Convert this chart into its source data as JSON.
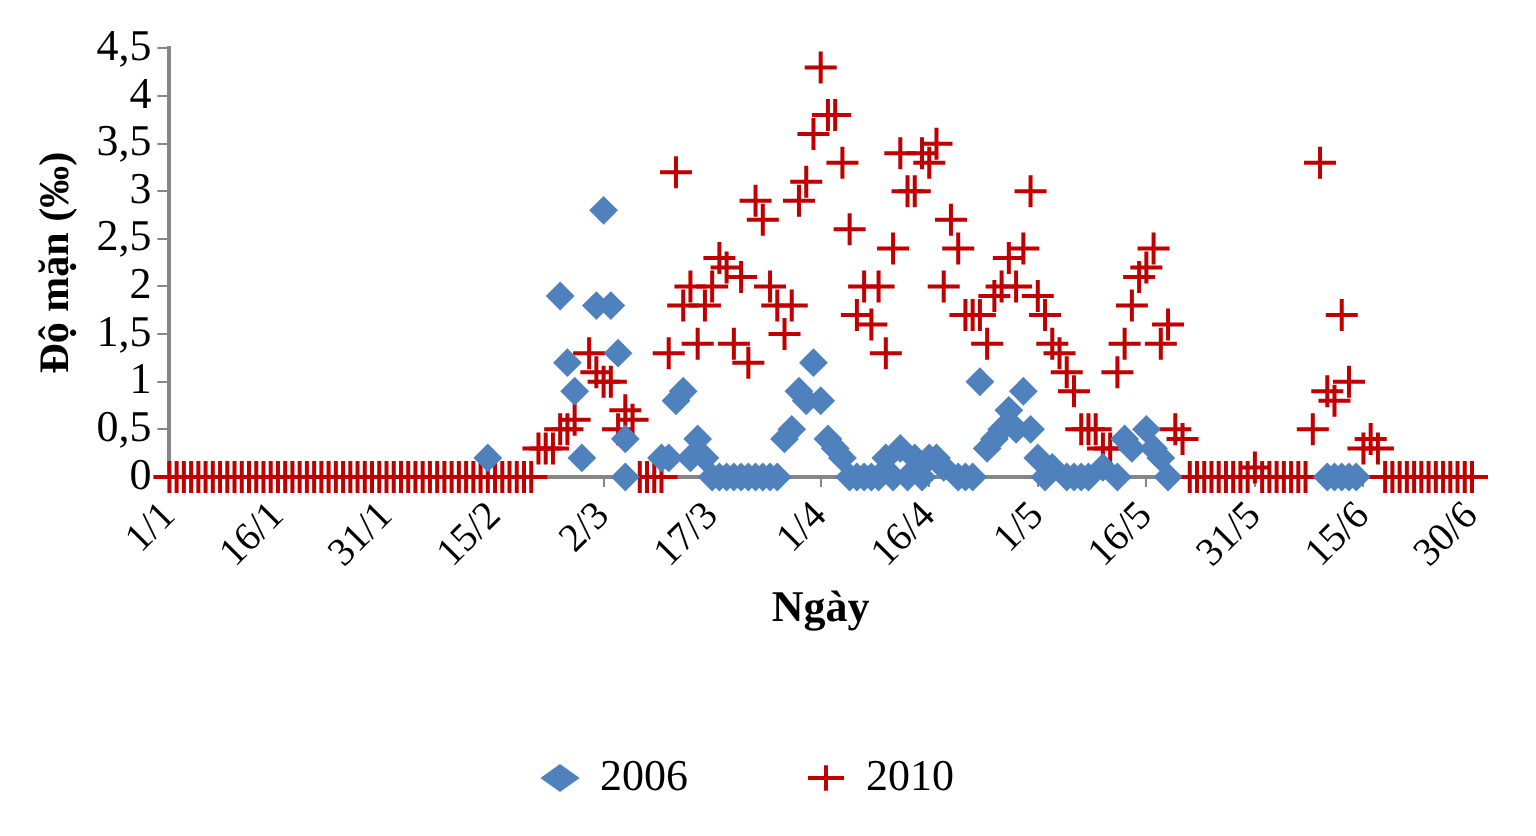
{
  "chart_data": {
    "type": "scatter",
    "xlabel": "Ngày",
    "ylabel": "Độ mặn (‰)",
    "legend": "bottom",
    "grid": false,
    "xlim": [
      "--01-01",
      "--06-30"
    ],
    "xticks": [
      {
        "value": "--01-01",
        "label": "1/1"
      },
      {
        "value": "--01-16",
        "label": "16/1"
      },
      {
        "value": "--01-31",
        "label": "31/1"
      },
      {
        "value": "--02-15",
        "label": "15/2"
      },
      {
        "value": "--03-02",
        "label": "2/3"
      },
      {
        "value": "--03-17",
        "label": "17/3"
      },
      {
        "value": "--04-01",
        "label": "1/4"
      },
      {
        "value": "--04-16",
        "label": "16/4"
      },
      {
        "value": "--05-01",
        "label": "1/5"
      },
      {
        "value": "--05-16",
        "label": "16/5"
      },
      {
        "value": "--05-31",
        "label": "31/5"
      },
      {
        "value": "--06-15",
        "label": "15/6"
      },
      {
        "value": "--06-30",
        "label": "30/6"
      }
    ],
    "ylim": [
      0,
      4.5
    ],
    "yticks": [
      0,
      {
        "value": 0.5,
        "label": "0,5"
      },
      1,
      {
        "value": 1.5,
        "label": "1,5"
      },
      2,
      {
        "value": 2.5,
        "label": "2,5"
      },
      3,
      {
        "value": 3.5,
        "label": "3,5"
      },
      4,
      {
        "value": 4.5,
        "label": "4,5"
      }
    ],
    "series": [
      {
        "name": "2006",
        "color": "#4f81bd",
        "marker": "diamond",
        "x": [
          "--02-14",
          "--02-24",
          "--02-25",
          "--02-26",
          "--02-27",
          "--03-01",
          "--03-02",
          "--03-03",
          "--03-04",
          "--03-05",
          "--03-05",
          "--03-10",
          "--03-11",
          "--03-12",
          "--03-13",
          "--03-14",
          "--03-15",
          "--03-16",
          "--03-17",
          "--03-18",
          "--03-19",
          "--03-20",
          "--03-21",
          "--03-22",
          "--03-23",
          "--03-24",
          "--03-25",
          "--03-26",
          "--03-27",
          "--03-28",
          "--03-29",
          "--03-30",
          "--03-31",
          "--04-01",
          "--04-02",
          "--04-03",
          "--04-04",
          "--04-05",
          "--04-06",
          "--04-07",
          "--04-08",
          "--04-09",
          "--04-10",
          "--04-11",
          "--04-12",
          "--04-13",
          "--04-14",
          "--04-15",
          "--04-16",
          "--04-17",
          "--04-18",
          "--04-20",
          "--04-21",
          "--04-22",
          "--04-23",
          "--04-24",
          "--04-25",
          "--04-26",
          "--04-27",
          "--04-28",
          "--04-29",
          "--04-30",
          "--05-01",
          "--05-02",
          "--05-03",
          "--05-05",
          "--05-06",
          "--05-07",
          "--05-08",
          "--05-10",
          "--05-12",
          "--05-13",
          "--05-14",
          "--05-16",
          "--05-17",
          "--05-18",
          "--05-19",
          "--06-10",
          "--06-11",
          "--06-12",
          "--06-13",
          "--06-14"
        ],
        "values": [
          0.2,
          1.9,
          1.2,
          0.9,
          0.2,
          1.8,
          2.8,
          1.8,
          1.3,
          0.4,
          0,
          0.2,
          0.2,
          0.8,
          0.9,
          0.2,
          0.4,
          0.2,
          0,
          0,
          0,
          0,
          0,
          0,
          0,
          0,
          0,
          0,
          0.4,
          0.5,
          0.9,
          0.8,
          1.2,
          0.8,
          0.4,
          0.3,
          0.2,
          0,
          0,
          0,
          0,
          0,
          0.2,
          0,
          0.3,
          0,
          0.2,
          0,
          0.2,
          0.2,
          0.1,
          0,
          0,
          0,
          1.0,
          0.3,
          0.4,
          0.5,
          0.7,
          0.5,
          0.9,
          0.5,
          0.2,
          0,
          0.1,
          0,
          0,
          0,
          0,
          0.1,
          0,
          0.4,
          0.3,
          0.5,
          0.3,
          0.2,
          0,
          0,
          0,
          0,
          0,
          0
        ]
      },
      {
        "name": "2010",
        "color": "#c00000",
        "marker": "cross",
        "x": [
          "--01-01",
          "--01-02",
          "--01-03",
          "--01-04",
          "--01-05",
          "--01-06",
          "--01-07",
          "--01-08",
          "--01-09",
          "--01-10",
          "--01-11",
          "--01-12",
          "--01-13",
          "--01-14",
          "--01-15",
          "--01-16",
          "--01-17",
          "--01-18",
          "--01-19",
          "--01-20",
          "--01-21",
          "--01-22",
          "--01-23",
          "--01-24",
          "--01-25",
          "--01-26",
          "--01-27",
          "--01-28",
          "--01-29",
          "--01-30",
          "--01-31",
          "--02-01",
          "--02-02",
          "--02-03",
          "--02-04",
          "--02-05",
          "--02-06",
          "--02-07",
          "--02-08",
          "--02-09",
          "--02-10",
          "--02-11",
          "--02-12",
          "--02-13",
          "--02-14",
          "--02-15",
          "--02-16",
          "--02-17",
          "--02-18",
          "--02-19",
          "--02-20",
          "--02-21",
          "--02-22",
          "--02-23",
          "--02-24",
          "--02-25",
          "--02-26",
          "--02-28",
          "--03-01",
          "--03-02",
          "--03-03",
          "--03-04",
          "--03-05",
          "--03-06",
          "--03-07",
          "--03-08",
          "--03-09",
          "--03-10",
          "--03-11",
          "--03-12",
          "--03-13",
          "--03-14",
          "--03-15",
          "--03-16",
          "--03-17",
          "--03-18",
          "--03-19",
          "--03-20",
          "--03-21",
          "--03-22",
          "--03-23",
          "--03-24",
          "--03-25",
          "--03-26",
          "--03-27",
          "--03-28",
          "--03-29",
          "--03-30",
          "--03-31",
          "--04-01",
          "--04-02",
          "--04-03",
          "--04-04",
          "--04-05",
          "--04-06",
          "--04-07",
          "--04-08",
          "--04-09",
          "--04-10",
          "--04-11",
          "--04-12",
          "--04-13",
          "--04-14",
          "--04-15",
          "--04-16",
          "--04-17",
          "--04-18",
          "--04-19",
          "--04-20",
          "--04-21",
          "--04-22",
          "--04-23",
          "--04-24",
          "--04-25",
          "--04-26",
          "--04-27",
          "--04-28",
          "--04-29",
          "--04-30",
          "--05-01",
          "--05-02",
          "--05-03",
          "--05-04",
          "--05-05",
          "--05-06",
          "--05-07",
          "--05-08",
          "--05-09",
          "--05-10",
          "--05-11",
          "--05-12",
          "--05-13",
          "--05-14",
          "--05-15",
          "--05-16",
          "--05-17",
          "--05-18",
          "--05-19",
          "--05-20",
          "--05-21",
          "--05-22",
          "--05-23",
          "--05-24",
          "--05-25",
          "--05-26",
          "--05-27",
          "--05-28",
          "--05-29",
          "--05-30",
          "--05-31",
          "--06-01",
          "--06-02",
          "--06-03",
          "--06-04",
          "--06-05",
          "--06-06",
          "--06-07",
          "--06-08",
          "--06-09",
          "--06-10",
          "--06-11",
          "--06-12",
          "--06-13",
          "--06-15",
          "--06-16",
          "--06-17",
          "--06-18",
          "--06-19",
          "--06-20",
          "--06-21",
          "--06-22",
          "--06-23",
          "--06-24",
          "--06-25",
          "--06-26",
          "--06-27",
          "--06-28",
          "--06-29",
          "--06-30"
        ],
        "values": [
          0,
          0,
          0,
          0,
          0,
          0,
          0,
          0,
          0,
          0,
          0,
          0,
          0,
          0,
          0,
          0,
          0,
          0,
          0,
          0,
          0,
          0,
          0,
          0,
          0,
          0,
          0,
          0,
          0,
          0,
          0,
          0,
          0,
          0,
          0,
          0,
          0,
          0,
          0,
          0,
          0,
          0,
          0,
          0,
          0,
          0,
          0,
          0,
          0,
          0,
          0,
          0.3,
          0.3,
          0.3,
          0.5,
          0.5,
          0.6,
          1.3,
          1.1,
          1.0,
          1.0,
          0.5,
          0.7,
          0.6,
          0,
          0,
          0,
          0,
          1.3,
          3.2,
          1.8,
          2.0,
          1.4,
          1.8,
          2.0,
          2.3,
          2.2,
          1.4,
          2.1,
          1.2,
          2.9,
          2.7,
          2.0,
          1.8,
          1.5,
          1.8,
          2.9,
          3.1,
          3.6,
          4.3,
          3.8,
          3.8,
          3.3,
          2.6,
          1.7,
          2.0,
          1.6,
          2.0,
          1.3,
          2.4,
          3.4,
          3.0,
          3.0,
          3.4,
          3.3,
          3.5,
          2.0,
          2.7,
          2.4,
          1.7,
          1.7,
          1.7,
          1.4,
          1.9,
          2.0,
          2.3,
          2.0,
          2.4,
          3.0,
          1.9,
          1.7,
          1.4,
          1.3,
          1.1,
          0.9,
          0.5,
          0.5,
          0.5,
          0.3,
          0.3,
          1.1,
          1.4,
          1.8,
          2.1,
          2.2,
          2.4,
          1.4,
          1.6,
          0.5,
          0.4,
          0,
          0,
          0,
          0,
          0,
          0,
          0,
          0,
          0,
          0.1,
          0,
          0,
          0,
          0,
          0,
          0,
          0,
          0.5,
          3.3,
          0.9,
          0.8,
          1.7,
          1.0,
          0.3,
          0.4,
          0.3,
          0,
          0,
          0,
          0,
          0,
          0,
          0,
          0,
          0,
          0,
          0,
          0,
          0
        ]
      }
    ]
  }
}
